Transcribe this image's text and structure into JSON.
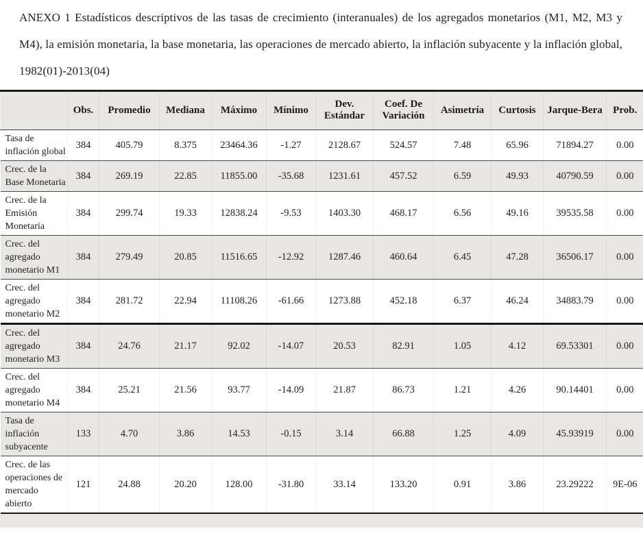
{
  "title": "ANEXO 1 Estadísticos descriptivos de las tasas de crecimiento (interanuales) de los agregados monetarios (M1, M2, M3 y M4), la emisión monetaria, la base monetaria, las operaciones de mercado abierto, la inflación subyacente y la inflación global, 1982(01)-2013(04)",
  "table": {
    "columns": [
      "",
      "Obs.",
      "Promedio",
      "Mediana",
      "Máximo",
      "Mínimo",
      "Dev. Estándar",
      "Coef. De Variación",
      "Asimetría",
      "Curtosis",
      "Jarque-Bera",
      "Prob."
    ],
    "rows": [
      {
        "label": "Tasa de inflación global",
        "values": [
          "384",
          "405.79",
          "8.375",
          "23464.36",
          "-1.27",
          "2128.67",
          "524.57",
          "7.48",
          "65.96",
          "71894.27",
          "0.00"
        ]
      },
      {
        "label": "Crec. de la Base Monetaria",
        "values": [
          "384",
          "269.19",
          "22.85",
          "11855.00",
          "-35.68",
          "1231.61",
          "457.52",
          "6.59",
          "49.93",
          "40790.59",
          "0.00"
        ]
      },
      {
        "label": "Crec. de la Emisión Monetaria",
        "values": [
          "384",
          "299.74",
          "19.33",
          "12838.24",
          "-9.53",
          "1403.30",
          "468.17",
          "6.56",
          "49.16",
          "39535.58",
          "0.00"
        ]
      },
      {
        "label": "Crec. del agregado monetario M1",
        "values": [
          "384",
          "279.49",
          "20.85",
          "11516.65",
          "-12.92",
          "1287.46",
          "460.64",
          "6.45",
          "47.28",
          "36506.17",
          "0.00"
        ]
      },
      {
        "label": "Crec. del agregado monetario M2",
        "values": [
          "384",
          "281.72",
          "22.94",
          "11108.26",
          "-61.66",
          "1273.88",
          "452.18",
          "6.37",
          "46.24",
          "34883.79",
          "0.00"
        ]
      },
      {
        "label": "Crec. del agregado monetario M3",
        "values": [
          "384",
          "24.76",
          "21.17",
          "92.02",
          "-14.07",
          "20.53",
          "82.91",
          "1.05",
          "4.12",
          "69.53301",
          "0.00"
        ]
      },
      {
        "label": "Crec. del agregado monetario M4",
        "values": [
          "384",
          "25.21",
          "21.56",
          "93.77",
          "-14.09",
          "21.87",
          "86.73",
          "1.21",
          "4.26",
          "90.14401",
          "0.00"
        ]
      },
      {
        "label": "Tasa de inflación subyacente",
        "values": [
          "133",
          "4.70",
          "3.86",
          "14.53",
          "-0.15",
          "3.14",
          "66.88",
          "1.25",
          "4.09",
          "45.93919",
          "0.00"
        ]
      },
      {
        "label": "Crec. de las operaciones de mercado abierto",
        "values": [
          "121",
          "24.88",
          "20.20",
          "128.00",
          "-31.80",
          "33.14",
          "133.20",
          "0.91",
          "3.86",
          "23.29222",
          "9E-06"
        ]
      }
    ]
  },
  "colors": {
    "row_shade": "#e8e7e3",
    "rule_dark": "#1c1c1c",
    "text": "#222222"
  }
}
